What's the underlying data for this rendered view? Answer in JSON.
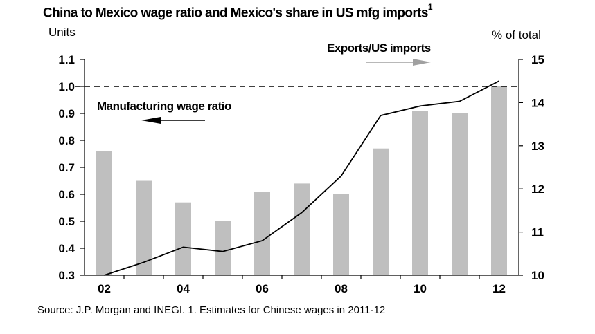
{
  "header": {
    "title": "China to Mexico wage ratio and Mexico's share in US mfg imports",
    "title_footnote": "1",
    "left_unit": "Units",
    "right_unit": "% of total"
  },
  "footer": {
    "source": "Source: J.P. Morgan and INEGI. 1. Estimates for Chinese wages in 2011-12"
  },
  "chart_data": {
    "type": "bar+line",
    "categories": [
      "02",
      "03",
      "04",
      "05",
      "06",
      "07",
      "08",
      "09",
      "10",
      "11",
      "12"
    ],
    "x_tick_labels": [
      "02",
      "04",
      "06",
      "08",
      "10",
      "12"
    ],
    "series": [
      {
        "name": "Manufacturing wage ratio",
        "type": "bar",
        "axis": "left",
        "color": "#bfbfbf",
        "values": [
          0.76,
          0.65,
          0.57,
          0.5,
          0.61,
          0.64,
          0.6,
          0.77,
          0.91,
          0.9,
          1.0
        ]
      },
      {
        "name": "Exports/US imports",
        "type": "line",
        "axis": "right",
        "color": "#000000",
        "values": [
          10.0,
          10.3,
          10.65,
          10.55,
          10.8,
          11.45,
          12.3,
          13.7,
          13.92,
          14.03,
          14.5
        ]
      }
    ],
    "y_left": {
      "range": [
        0.3,
        1.1
      ],
      "ticks": [
        "0.3",
        "0.4",
        "0.5",
        "0.6",
        "0.7",
        "0.8",
        "0.9",
        "1.0",
        "1.1"
      ]
    },
    "y_right": {
      "range": [
        10,
        15
      ],
      "ticks": [
        "10",
        "11",
        "12",
        "13",
        "14",
        "15"
      ]
    },
    "reference_line": {
      "axis": "left",
      "value": 1.0,
      "style": "dashed"
    },
    "annotations": [
      {
        "text": "Manufacturing wage ratio",
        "arrow": "left"
      },
      {
        "text": "Exports/US imports",
        "arrow": "right"
      }
    ],
    "grid": false
  }
}
